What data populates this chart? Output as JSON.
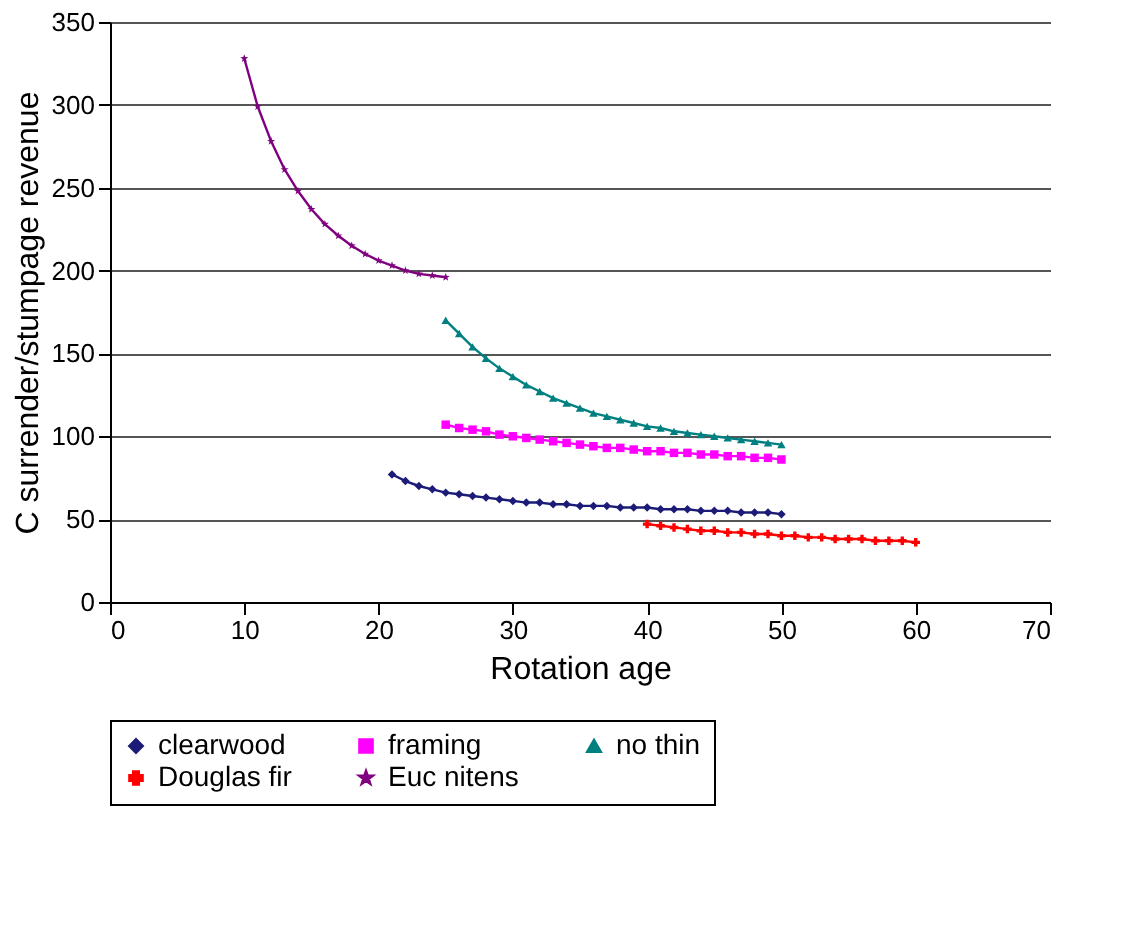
{
  "chart_data": {
    "type": "line",
    "xlabel": "Rotation age",
    "ylabel": "C surrender/stumpage revenue",
    "xlim": [
      0,
      70
    ],
    "xticks": [
      0,
      10,
      20,
      30,
      40,
      50,
      60,
      70
    ],
    "ylim": [
      0,
      350
    ],
    "yticks": [
      0,
      50,
      100,
      150,
      200,
      250,
      300,
      350
    ],
    "grid": "y",
    "legend": "bottom",
    "line_style": "solid",
    "series": [
      {
        "name": "clearwood",
        "color": "#1c1c78",
        "marker": "diamond",
        "x": [
          21,
          22,
          23,
          24,
          25,
          26,
          27,
          28,
          29,
          30,
          31,
          32,
          33,
          34,
          35,
          36,
          37,
          38,
          39,
          40,
          41,
          42,
          43,
          44,
          45,
          46,
          47,
          48,
          49,
          50
        ],
        "values": [
          77,
          73,
          70,
          68,
          66,
          65,
          64,
          63,
          62,
          61,
          60,
          60,
          59,
          59,
          58,
          58,
          58,
          57,
          57,
          57,
          56,
          56,
          56,
          55,
          55,
          55,
          54,
          54,
          54,
          53
        ]
      },
      {
        "name": "framing",
        "color": "#ff00ff",
        "marker": "square",
        "x": [
          25,
          26,
          27,
          28,
          29,
          30,
          31,
          32,
          33,
          34,
          35,
          36,
          37,
          38,
          39,
          40,
          41,
          42,
          43,
          44,
          45,
          46,
          47,
          48,
          49,
          50
        ],
        "values": [
          107,
          105,
          104,
          103,
          101,
          100,
          99,
          98,
          97,
          96,
          95,
          94,
          93,
          93,
          92,
          91,
          91,
          90,
          90,
          89,
          89,
          88,
          88,
          87,
          87,
          86
        ]
      },
      {
        "name": "no thin",
        "color": "#008080",
        "marker": "triangle",
        "x": [
          25,
          26,
          27,
          28,
          29,
          30,
          31,
          32,
          33,
          34,
          35,
          36,
          37,
          38,
          39,
          40,
          41,
          42,
          43,
          44,
          45,
          46,
          47,
          48,
          49,
          50
        ],
        "values": [
          170,
          162,
          154,
          147,
          141,
          136,
          131,
          127,
          123,
          120,
          117,
          114,
          112,
          110,
          108,
          106,
          105,
          103,
          102,
          101,
          100,
          99,
          98,
          97,
          96,
          95
        ]
      },
      {
        "name": "Douglas fir",
        "color": "#ff0000",
        "marker": "cross",
        "x": [
          40,
          41,
          42,
          43,
          44,
          45,
          46,
          47,
          48,
          49,
          50,
          51,
          52,
          53,
          54,
          55,
          56,
          57,
          58,
          59,
          60
        ],
        "values": [
          47,
          46,
          45,
          44,
          43,
          43,
          42,
          42,
          41,
          41,
          40,
          40,
          39,
          39,
          38,
          38,
          38,
          37,
          37,
          37,
          36
        ]
      },
      {
        "name": "Euc nitens",
        "color": "#800080",
        "marker": "star",
        "x": [
          10,
          11,
          12,
          13,
          14,
          15,
          16,
          17,
          18,
          19,
          20,
          21,
          22,
          23,
          24,
          25
        ],
        "values": [
          328,
          299,
          278,
          261,
          248,
          237,
          228,
          221,
          215,
          210,
          206,
          203,
          200,
          198,
          197,
          196
        ]
      }
    ]
  }
}
